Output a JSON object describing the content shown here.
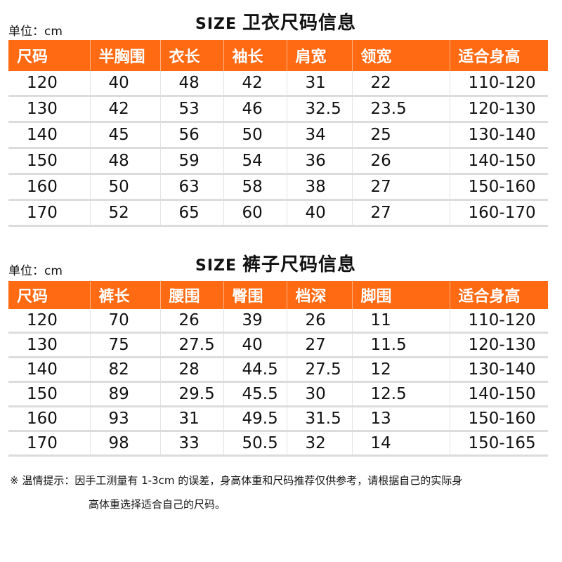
{
  "colors": {
    "header_bg": "#ff6a13",
    "header_text": "#ffffff"
  },
  "hoodie": {
    "unit": "单位：cm",
    "size_label": "SIZE",
    "title": "卫衣尺码信息",
    "headers": [
      "尺码",
      "半胸围",
      "衣长",
      "袖长",
      "肩宽",
      "领宽",
      "适合身高"
    ],
    "rows": [
      [
        "120",
        "40",
        "48",
        "42",
        "31",
        "22",
        "110-120"
      ],
      [
        "130",
        "42",
        "53",
        "46",
        "32.5",
        "23.5",
        "120-130"
      ],
      [
        "140",
        "45",
        "56",
        "50",
        "34",
        "25",
        "130-140"
      ],
      [
        "150",
        "48",
        "59",
        "54",
        "36",
        "26",
        "140-150"
      ],
      [
        "160",
        "50",
        "63",
        "58",
        "38",
        "27",
        "150-160"
      ],
      [
        "170",
        "52",
        "65",
        "60",
        "40",
        "27",
        "160-170"
      ]
    ]
  },
  "pants": {
    "unit": "单位：cm",
    "size_label": "SIZE",
    "title": "裤子尺码信息",
    "headers": [
      "尺码",
      "裤长",
      "腰围",
      "臀围",
      "档深",
      "脚围",
      "适合身高"
    ],
    "rows": [
      [
        "120",
        "70",
        "26",
        "39",
        "26",
        "11",
        "110-120"
      ],
      [
        "130",
        "75",
        "27.5",
        "40",
        "27",
        "11.5",
        "120-130"
      ],
      [
        "140",
        "82",
        "28",
        "44.5",
        "27.5",
        "12",
        "130-140"
      ],
      [
        "150",
        "89",
        "29.5",
        "45.5",
        "30",
        "12.5",
        "140-150"
      ],
      [
        "160",
        "93",
        "31",
        "49.5",
        "31.5",
        "13",
        "150-160"
      ],
      [
        "170",
        "98",
        "33",
        "50.5",
        "32",
        "14",
        "150-165"
      ]
    ]
  },
  "note": {
    "line1": "※ 温情提示：因手工测量有 1-3cm 的误差，身高体重和尺码推荐仅供参考，请根据自己的实际身",
    "line2": "高体重选择适合自己的尺码。"
  }
}
